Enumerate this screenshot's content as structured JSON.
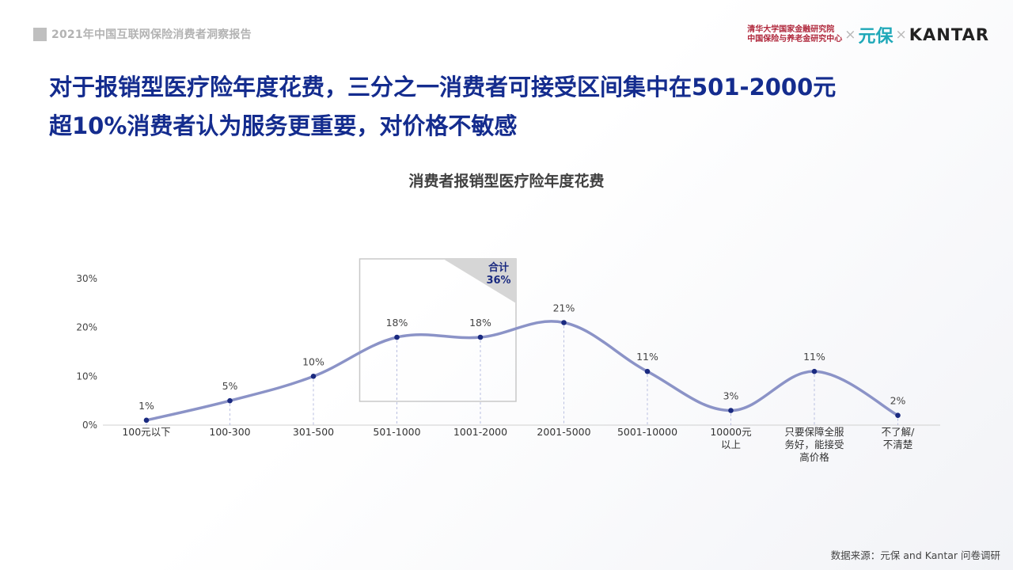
{
  "header": {
    "report_title": "2021年中国互联网保险消费者洞察报告",
    "logo_tsinghua_line1": "清华大学国家金融研究院",
    "logo_tsinghua_line2": "中国保险与养老金研究中心",
    "logo_x": "×",
    "logo_yuanbao": "元保",
    "logo_kantar": "KANTAR"
  },
  "headline": {
    "line1": "对于报销型医疗险年度花费，三分之一消费者可接受区间集中在501-2000元",
    "line2": "超10%消费者认为服务更重要，对价格不敏感"
  },
  "chart_data": {
    "type": "line",
    "title": "消费者报销型医疗险年度花费",
    "xlabel": "",
    "ylabel": "",
    "categories": [
      [
        "100元以下"
      ],
      [
        "100-300"
      ],
      [
        "301-500"
      ],
      [
        "501-1000"
      ],
      [
        "1001-2000"
      ],
      [
        "2001-5000"
      ],
      [
        "5001-10000"
      ],
      [
        "10000元",
        "以上"
      ],
      [
        "只要保障全服",
        "务好，能接受",
        "高价格"
      ],
      [
        "不了解/",
        "不清楚"
      ]
    ],
    "values": [
      1,
      5,
      10,
      18,
      18,
      21,
      11,
      3,
      11,
      2
    ],
    "value_labels": [
      "1%",
      "5%",
      "10%",
      "18%",
      "18%",
      "21%",
      "11%",
      "3%",
      "11%",
      "2%"
    ],
    "yticks": [
      "0%",
      "10%",
      "20%",
      "30%"
    ],
    "ylim": [
      0,
      30
    ],
    "smooth": true,
    "line_color": "#8b93c7",
    "point_color": "#1a2a80",
    "annotation": {
      "label_line1": "合计",
      "label_line2": "36%",
      "covers_categories": [
        3,
        4
      ]
    }
  },
  "source": "数据来源：元保 and Kantar 问卷调研"
}
